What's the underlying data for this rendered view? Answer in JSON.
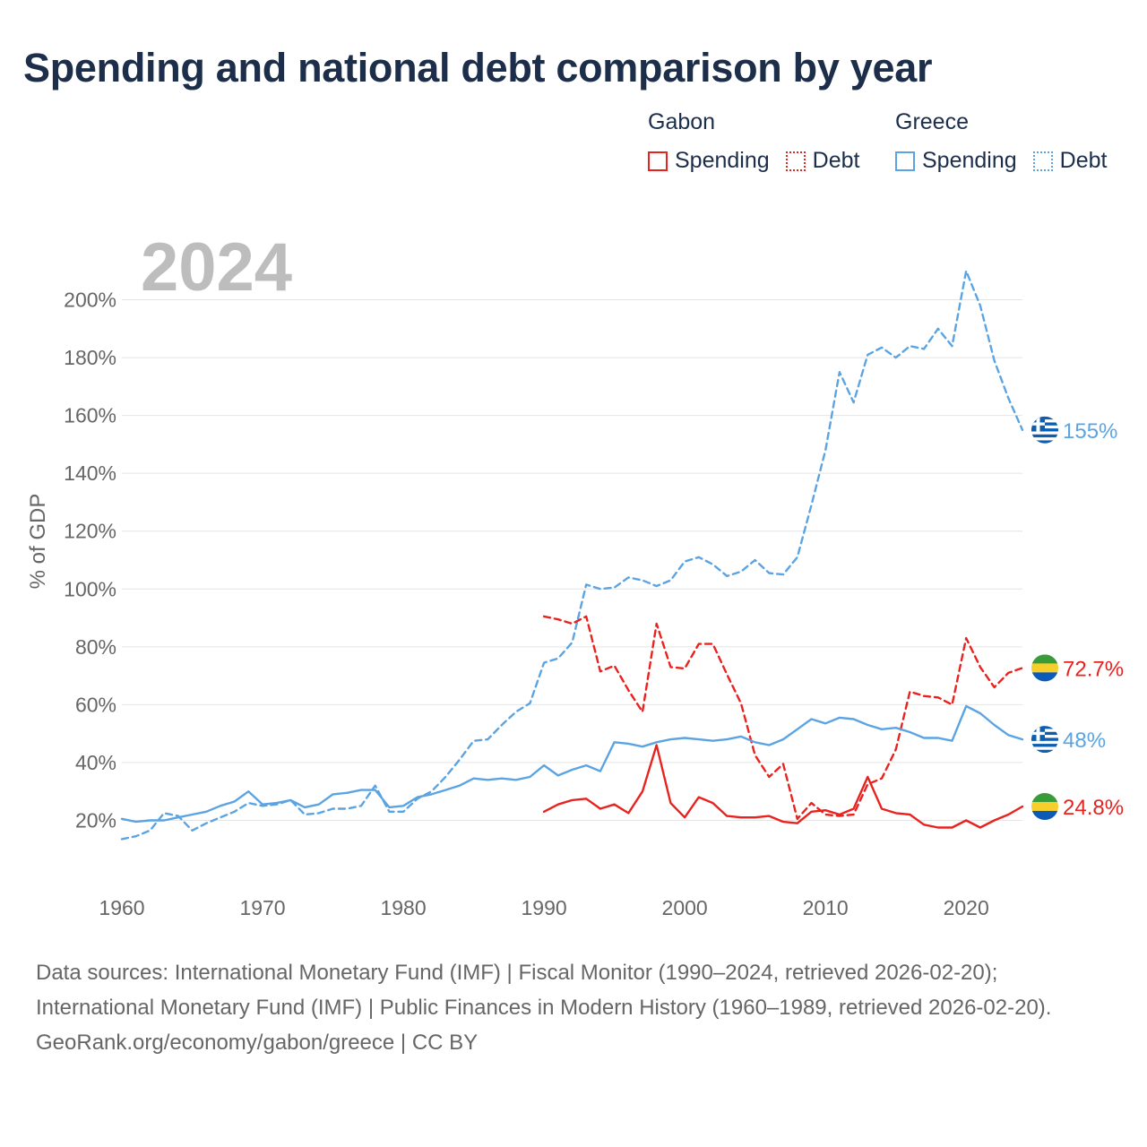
{
  "title": "Spending and national debt comparison by year",
  "legend": {
    "groups": [
      {
        "name": "Gabon",
        "color": "#e8231f",
        "items": [
          {
            "label": "Spending",
            "style": "solid"
          },
          {
            "label": "Debt",
            "style": "dotted"
          }
        ]
      },
      {
        "name": "Greece",
        "color": "#5ba4e3",
        "items": [
          {
            "label": "Spending",
            "style": "solid"
          },
          {
            "label": "Debt",
            "style": "dotted"
          }
        ]
      }
    ]
  },
  "year_overlay": "2024",
  "end_labels": {
    "greece_debt": "155%",
    "gabon_debt": "72.7%",
    "greece_spending": "48%",
    "gabon_spending": "24.8%"
  },
  "flags": {
    "greece": {
      "name": "greece-flag-icon",
      "colors": [
        "#0d5eaf",
        "#ffffff"
      ]
    },
    "gabon": {
      "name": "gabon-flag-icon",
      "colors": [
        "#3a9b3a",
        "#f6cf2c",
        "#0c5bb8"
      ]
    }
  },
  "chart_data": {
    "type": "line",
    "ylabel": "% of GDP",
    "xlabel": "",
    "xlim": [
      1960,
      2024
    ],
    "ylim": [
      0,
      220
    ],
    "grid": true,
    "x_ticks": [
      1960,
      1970,
      1980,
      1990,
      2000,
      2010,
      2020
    ],
    "y_ticks": [
      20,
      40,
      60,
      80,
      100,
      120,
      140,
      160,
      180,
      200
    ],
    "y_tick_labels": [
      "20%",
      "40%",
      "60%",
      "80%",
      "100%",
      "120%",
      "140%",
      "160%",
      "180%",
      "200%"
    ],
    "series": [
      {
        "name": "Greece Debt",
        "country": "Greece",
        "measure": "Debt",
        "color": "#5ba4e3",
        "dashed": true,
        "x": [
          1960,
          1961,
          1962,
          1963,
          1964,
          1965,
          1966,
          1967,
          1968,
          1969,
          1970,
          1971,
          1972,
          1973,
          1974,
          1975,
          1976,
          1977,
          1978,
          1979,
          1980,
          1981,
          1982,
          1983,
          1984,
          1985,
          1986,
          1987,
          1988,
          1989,
          1990,
          1991,
          1992,
          1993,
          1994,
          1995,
          1996,
          1997,
          1998,
          1999,
          2000,
          2001,
          2002,
          2003,
          2004,
          2005,
          2006,
          2007,
          2008,
          2009,
          2010,
          2011,
          2012,
          2013,
          2014,
          2015,
          2016,
          2017,
          2018,
          2019,
          2020,
          2021,
          2022,
          2023,
          2024
        ],
        "values": [
          13.5,
          14.5,
          16.5,
          22.5,
          21.5,
          16.5,
          19,
          21,
          23,
          26,
          25,
          25.5,
          27,
          22,
          22.5,
          24,
          24,
          25,
          32,
          23,
          23,
          27.5,
          30,
          35,
          41,
          47.5,
          48,
          53,
          57.5,
          60.5,
          74.5,
          76,
          81.5,
          101.5,
          100,
          100.5,
          104,
          103,
          101,
          103,
          109.5,
          111,
          108.5,
          104.5,
          106,
          110,
          105.5,
          105,
          111,
          129,
          148,
          175,
          164.5,
          181,
          183.5,
          180,
          184,
          183,
          190,
          184,
          210,
          198,
          179,
          166,
          155
        ]
      },
      {
        "name": "Gabon Debt",
        "country": "Gabon",
        "measure": "Debt",
        "color": "#e8231f",
        "dashed": true,
        "x": [
          1990,
          1991,
          1992,
          1993,
          1994,
          1995,
          1996,
          1997,
          1998,
          1999,
          2000,
          2001,
          2002,
          2003,
          2004,
          2005,
          2006,
          2007,
          2008,
          2009,
          2010,
          2011,
          2012,
          2013,
          2014,
          2015,
          2016,
          2017,
          2018,
          2019,
          2020,
          2021,
          2022,
          2023,
          2024
        ],
        "values": [
          90.5,
          89.5,
          88,
          90.5,
          71.5,
          73.5,
          65,
          57.5,
          88,
          73,
          72.5,
          81,
          81,
          70.5,
          60.5,
          42.5,
          35,
          39.5,
          20.5,
          26,
          22,
          21.5,
          22,
          32.5,
          34.5,
          44.5,
          64.5,
          63,
          62.5,
          60,
          83,
          73,
          66,
          71,
          72.7
        ]
      },
      {
        "name": "Greece Spending",
        "country": "Greece",
        "measure": "Spending",
        "color": "#5ba4e3",
        "dashed": false,
        "x": [
          1960,
          1961,
          1962,
          1963,
          1964,
          1965,
          1966,
          1967,
          1968,
          1969,
          1970,
          1971,
          1972,
          1973,
          1974,
          1975,
          1976,
          1977,
          1978,
          1979,
          1980,
          1981,
          1982,
          1983,
          1984,
          1985,
          1986,
          1987,
          1988,
          1989,
          1990,
          1991,
          1992,
          1993,
          1994,
          1995,
          1996,
          1997,
          1998,
          1999,
          2000,
          2001,
          2002,
          2003,
          2004,
          2005,
          2006,
          2007,
          2008,
          2009,
          2010,
          2011,
          2012,
          2013,
          2014,
          2015,
          2016,
          2017,
          2018,
          2019,
          2020,
          2021,
          2022,
          2023,
          2024
        ],
        "values": [
          20.5,
          19.5,
          20,
          20,
          21,
          22,
          23,
          25,
          26.5,
          30,
          25.5,
          26,
          27,
          24.5,
          25.5,
          29,
          29.5,
          30.5,
          30.5,
          24.5,
          25,
          28,
          29,
          30.5,
          32,
          34.5,
          34,
          34.5,
          34,
          35,
          39,
          35.5,
          37.5,
          39,
          37,
          47,
          46.5,
          45.5,
          47,
          48,
          48.5,
          48,
          47.5,
          48,
          49,
          47,
          46,
          48,
          51.5,
          55,
          53.5,
          55.5,
          55,
          53,
          51.5,
          52,
          50.5,
          48.5,
          48.5,
          47.5,
          59.5,
          57,
          53,
          49.5,
          48
        ]
      },
      {
        "name": "Gabon Spending",
        "country": "Gabon",
        "measure": "Spending",
        "color": "#e8231f",
        "dashed": false,
        "x": [
          1990,
          1991,
          1992,
          1993,
          1994,
          1995,
          1996,
          1997,
          1998,
          1999,
          2000,
          2001,
          2002,
          2003,
          2004,
          2005,
          2006,
          2007,
          2008,
          2009,
          2010,
          2011,
          2012,
          2013,
          2014,
          2015,
          2016,
          2017,
          2018,
          2019,
          2020,
          2021,
          2022,
          2023,
          2024
        ],
        "values": [
          23,
          25.5,
          27,
          27.5,
          24,
          25.5,
          22.5,
          30,
          46,
          26,
          21,
          28,
          26,
          21.5,
          21,
          21,
          21.5,
          19.5,
          19,
          23,
          23.5,
          22,
          24,
          35,
          24,
          22.5,
          22,
          18.5,
          17.5,
          17.5,
          20,
          17.5,
          20,
          22,
          24.8
        ]
      }
    ]
  },
  "footer": {
    "sources": "Data sources: International Monetary Fund (IMF) | Fiscal Monitor (1990–2024, retrieved 2026-02-20); International Monetary Fund (IMF) | Public Finances in Modern History (1960–1989, retrieved 2026-02-20).",
    "credit": "GeoRank.org/economy/gabon/greece | CC BY"
  }
}
